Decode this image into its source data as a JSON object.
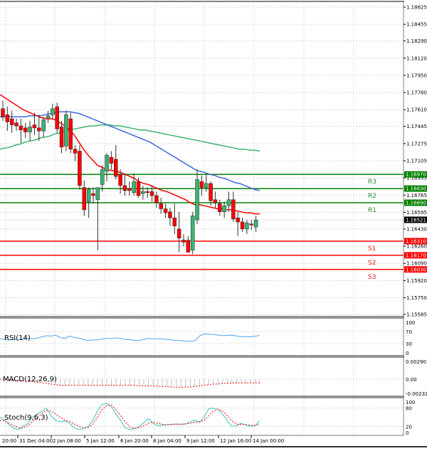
{
  "chart_data": {
    "type": "candlestick",
    "title": "",
    "symbol_context": "EUR/USD H4",
    "colors": {
      "bull": "#3cb371",
      "bear": "#ff0000",
      "wick": "#333333",
      "ma_fast": "#ff0000",
      "ma_mid": "#4169e1",
      "ma_slow": "#3cb371",
      "resistance": "#008000",
      "support": "#ff0000",
      "grid": "#d8d8d8",
      "rsi": "#4aa3ef",
      "macd_hist": "#c0c0c0",
      "macd_signal": "#ff0000",
      "stoch_main": "#40c0c0",
      "stoch_signal": "#ff0000",
      "current_price_bg": "#000000"
    },
    "price_axis": {
      "ticks": [
        "1.18625",
        "1.18455",
        "1.18290",
        "1.18120",
        "1.17950",
        "1.17780",
        "1.17610",
        "1.17445",
        "1.17275",
        "1.17105",
        "1.16935",
        "1.16765",
        "1.16595",
        "1.16430",
        "1.16260",
        "1.16090",
        "1.15920",
        "1.15750",
        "1.15585"
      ],
      "ylim": [
        1.15585,
        1.18625
      ]
    },
    "current_price": "1.16521",
    "levels": [
      {
        "name": "R3",
        "value": "1.16970",
        "type": "resistance"
      },
      {
        "name": "R2",
        "value": "1.16830",
        "type": "resistance"
      },
      {
        "name": "R1",
        "value": "1.16690",
        "type": "resistance"
      },
      {
        "name": "S1",
        "value": "1.16310",
        "type": "support"
      },
      {
        "name": "S2",
        "value": "1.16170",
        "type": "support"
      },
      {
        "name": "S3",
        "value": "1.16030",
        "type": "support"
      }
    ],
    "time_axis": {
      "labels": [
        "20:00",
        "31 Dec 04:00",
        "2 Jan 08:00",
        "5 Jan 12:00",
        "6 Jan 20:00",
        "8 Jan 04:00",
        "9 Jan 12:00",
        "12 Jan 16:00",
        "14 Jan 00:00"
      ]
    },
    "candles": [
      {
        "o": 1.1762,
        "h": 1.177,
        "l": 1.175,
        "c": 1.1754
      },
      {
        "o": 1.1756,
        "h": 1.1764,
        "l": 1.174,
        "c": 1.1749
      },
      {
        "o": 1.1752,
        "h": 1.176,
        "l": 1.1738,
        "c": 1.1746
      },
      {
        "o": 1.1748,
        "h": 1.1752,
        "l": 1.174,
        "c": 1.1745
      },
      {
        "o": 1.1745,
        "h": 1.1752,
        "l": 1.1728,
        "c": 1.1741
      },
      {
        "o": 1.1743,
        "h": 1.1748,
        "l": 1.1733,
        "c": 1.1739
      },
      {
        "o": 1.1739,
        "h": 1.175,
        "l": 1.173,
        "c": 1.1744
      },
      {
        "o": 1.1746,
        "h": 1.1758,
        "l": 1.1736,
        "c": 1.1743
      },
      {
        "o": 1.1743,
        "h": 1.1756,
        "l": 1.173,
        "c": 1.174
      },
      {
        "o": 1.174,
        "h": 1.1754,
        "l": 1.1734,
        "c": 1.1751
      },
      {
        "o": 1.1753,
        "h": 1.176,
        "l": 1.1748,
        "c": 1.1755
      },
      {
        "o": 1.1756,
        "h": 1.1767,
        "l": 1.1752,
        "c": 1.1762
      },
      {
        "o": 1.1764,
        "h": 1.1768,
        "l": 1.1738,
        "c": 1.1742
      },
      {
        "o": 1.1744,
        "h": 1.175,
        "l": 1.1718,
        "c": 1.1724
      },
      {
        "o": 1.1725,
        "h": 1.176,
        "l": 1.172,
        "c": 1.1756
      },
      {
        "o": 1.1752,
        "h": 1.1758,
        "l": 1.1718,
        "c": 1.1722
      },
      {
        "o": 1.1722,
        "h": 1.1726,
        "l": 1.171,
        "c": 1.1718
      },
      {
        "o": 1.172,
        "h": 1.1726,
        "l": 1.1682,
        "c": 1.1686
      },
      {
        "o": 1.1684,
        "h": 1.1691,
        "l": 1.1656,
        "c": 1.1662
      },
      {
        "o": 1.167,
        "h": 1.1684,
        "l": 1.1654,
        "c": 1.1682
      },
      {
        "o": 1.1678,
        "h": 1.1684,
        "l": 1.1668,
        "c": 1.1676
      },
      {
        "o": 1.1672,
        "h": 1.1684,
        "l": 1.1622,
        "c": 1.1684
      },
      {
        "o": 1.1687,
        "h": 1.1706,
        "l": 1.168,
        "c": 1.1702
      },
      {
        "o": 1.17,
        "h": 1.1718,
        "l": 1.169,
        "c": 1.1716
      },
      {
        "o": 1.1714,
        "h": 1.172,
        "l": 1.1702,
        "c": 1.1708
      },
      {
        "o": 1.1712,
        "h": 1.1726,
        "l": 1.1692,
        "c": 1.1695
      },
      {
        "o": 1.1697,
        "h": 1.1702,
        "l": 1.1678,
        "c": 1.1686
      },
      {
        "o": 1.1686,
        "h": 1.1698,
        "l": 1.1676,
        "c": 1.1681
      },
      {
        "o": 1.1683,
        "h": 1.169,
        "l": 1.1676,
        "c": 1.1681
      },
      {
        "o": 1.1679,
        "h": 1.1698,
        "l": 1.1676,
        "c": 1.169
      },
      {
        "o": 1.169,
        "h": 1.1694,
        "l": 1.1674,
        "c": 1.1676
      },
      {
        "o": 1.1678,
        "h": 1.1686,
        "l": 1.1672,
        "c": 1.168
      },
      {
        "o": 1.168,
        "h": 1.1684,
        "l": 1.1674,
        "c": 1.1679
      },
      {
        "o": 1.168,
        "h": 1.1686,
        "l": 1.167,
        "c": 1.1676
      },
      {
        "o": 1.1676,
        "h": 1.168,
        "l": 1.1664,
        "c": 1.1669
      },
      {
        "o": 1.1668,
        "h": 1.1674,
        "l": 1.1658,
        "c": 1.1663
      },
      {
        "o": 1.1663,
        "h": 1.1668,
        "l": 1.1654,
        "c": 1.1659
      },
      {
        "o": 1.166,
        "h": 1.1664,
        "l": 1.1646,
        "c": 1.1654
      },
      {
        "o": 1.1654,
        "h": 1.1668,
        "l": 1.1638,
        "c": 1.1646
      },
      {
        "o": 1.1643,
        "h": 1.166,
        "l": 1.162,
        "c": 1.1634
      },
      {
        "o": 1.1632,
        "h": 1.1638,
        "l": 1.1626,
        "c": 1.163
      },
      {
        "o": 1.1632,
        "h": 1.1636,
        "l": 1.162,
        "c": 1.162
      },
      {
        "o": 1.1622,
        "h": 1.166,
        "l": 1.1618,
        "c": 1.1656
      },
      {
        "o": 1.1652,
        "h": 1.1702,
        "l": 1.1648,
        "c": 1.1692
      },
      {
        "o": 1.169,
        "h": 1.1696,
        "l": 1.1676,
        "c": 1.1684
      },
      {
        "o": 1.1684,
        "h": 1.1698,
        "l": 1.168,
        "c": 1.1688
      },
      {
        "o": 1.1688,
        "h": 1.169,
        "l": 1.1666,
        "c": 1.1671
      },
      {
        "o": 1.1672,
        "h": 1.168,
        "l": 1.1664,
        "c": 1.1669
      },
      {
        "o": 1.1668,
        "h": 1.1672,
        "l": 1.1656,
        "c": 1.166
      },
      {
        "o": 1.166,
        "h": 1.167,
        "l": 1.1654,
        "c": 1.1666
      },
      {
        "o": 1.1666,
        "h": 1.168,
        "l": 1.166,
        "c": 1.1672
      },
      {
        "o": 1.1672,
        "h": 1.168,
        "l": 1.165,
        "c": 1.1653
      },
      {
        "o": 1.1654,
        "h": 1.166,
        "l": 1.1636,
        "c": 1.165
      },
      {
        "o": 1.165,
        "h": 1.1654,
        "l": 1.164,
        "c": 1.1643
      },
      {
        "o": 1.1643,
        "h": 1.1652,
        "l": 1.1638,
        "c": 1.1649
      },
      {
        "o": 1.1648,
        "h": 1.1652,
        "l": 1.1642,
        "c": 1.1647
      },
      {
        "o": 1.1645,
        "h": 1.1656,
        "l": 1.164,
        "c": 1.1652
      }
    ],
    "ma_fast": [
      1.1776,
      1.1773,
      1.177,
      1.1767,
      1.1764,
      1.1761,
      1.1759,
      1.1757,
      1.1755,
      1.1753,
      1.1752,
      1.1752,
      1.1751,
      1.1748,
      1.1745,
      1.1741,
      1.1736,
      1.1729,
      1.1722,
      1.1716,
      1.1711,
      1.1706,
      1.1704,
      1.1702,
      1.1701,
      1.17,
      1.1699,
      1.1697,
      1.1695,
      1.1693,
      1.169,
      1.1688,
      1.1687,
      1.1685,
      1.1683,
      1.1681,
      1.168,
      1.1678,
      1.1676,
      1.1674,
      1.1672,
      1.1669,
      1.1667,
      1.1667,
      1.1666,
      1.1665,
      1.1664,
      1.1663,
      1.1663,
      1.1662,
      1.1662,
      1.1661,
      1.166,
      1.1659,
      1.1659,
      1.1658,
      1.1658
    ],
    "ma_mid": [
      1.1754,
      1.1754,
      1.1754,
      1.1754,
      1.1754,
      1.1754,
      1.1755,
      1.1755,
      1.1755,
      1.1756,
      1.1757,
      1.1758,
      1.1759,
      1.1759,
      1.1759,
      1.1758,
      1.1757,
      1.1755,
      1.1753,
      1.1751,
      1.1749,
      1.1747,
      1.1745,
      1.1743,
      1.1741,
      1.1739,
      1.1737,
      1.1735,
      1.1733,
      1.1731,
      1.1729,
      1.1726,
      1.1723,
      1.172,
      1.1717,
      1.1714,
      1.1711,
      1.1708,
      1.1705,
      1.1702,
      1.17,
      1.1699,
      1.1697,
      1.1696,
      1.1694,
      1.1693,
      1.1691,
      1.1689,
      1.1688,
      1.1686,
      1.1684,
      1.1682,
      1.1681
    ],
    "ma_slow": [
      1.1722,
      1.1723,
      1.1724,
      1.1726,
      1.1727,
      1.1729,
      1.173,
      1.1731,
      1.1733,
      1.1734,
      1.1735,
      1.1737,
      1.1738,
      1.174,
      1.1741,
      1.1742,
      1.1743,
      1.1744,
      1.1745,
      1.1745,
      1.1746,
      1.1746,
      1.1746,
      1.1745,
      1.1745,
      1.1744,
      1.1743,
      1.1742,
      1.1741,
      1.1741,
      1.174,
      1.1739,
      1.1738,
      1.1737,
      1.1736,
      1.1735,
      1.1734,
      1.1733,
      1.1732,
      1.1731,
      1.173,
      1.1729,
      1.1728,
      1.1727,
      1.1726,
      1.1725,
      1.1724,
      1.1723,
      1.1722,
      1.1722,
      1.1721,
      1.1721,
      1.172
    ],
    "indicators": {
      "rsi": {
        "label": "RSI(14)",
        "ticks": [
          "100",
          "70",
          "30",
          "0"
        ],
        "values": [
          46,
          44,
          42,
          44,
          43,
          45,
          47,
          46,
          48,
          52,
          56,
          55,
          58,
          50,
          47,
          55,
          50,
          48,
          44,
          40,
          42,
          42,
          45,
          48,
          46,
          49,
          47,
          44,
          43,
          41,
          40,
          44,
          47,
          46,
          46,
          46,
          44,
          42,
          40,
          40,
          38,
          38,
          39,
          55,
          62,
          61,
          60,
          58,
          56,
          57,
          58,
          55,
          53,
          53,
          53,
          54,
          57
        ]
      },
      "macd": {
        "label": "MACD(12,26,9)",
        "ticks": [
          "0.002903",
          "0.00",
          "-0.002324"
        ],
        "hist": [
          0.0001,
          0.0,
          -0.0001,
          -0.0002,
          -0.0002,
          -0.0003,
          -0.0003,
          -0.0003,
          -0.0004,
          -0.0004,
          -0.0005,
          -0.0006,
          -0.0008,
          -0.0009,
          -0.001,
          -0.001,
          -0.001,
          -0.001,
          -0.001,
          -0.001,
          -0.001,
          -0.001,
          -0.001,
          -0.001,
          -0.001,
          -0.001,
          -0.001,
          -0.001,
          -0.001,
          -0.001,
          -0.001,
          -0.001,
          -0.001,
          -0.001,
          -0.0011,
          -0.0011,
          -0.0012,
          -0.0012,
          -0.0012,
          -0.0013,
          -0.0013,
          -0.0013,
          -0.0012,
          -0.001,
          -0.0009,
          -0.0008,
          -0.0008,
          -0.0008,
          -0.0007,
          -0.0007,
          -0.0007,
          -0.0007,
          -0.0007,
          -0.0007,
          -0.0006,
          -0.0006,
          -0.0006
        ],
        "signal": [
          0.0,
          0.0,
          -0.0001,
          -0.0002,
          -0.0002,
          -0.0003,
          -0.0004,
          -0.0004,
          -0.0005,
          -0.0006,
          -0.0007,
          -0.0008,
          -0.0009,
          -0.001,
          -0.001,
          -0.001,
          -0.001,
          -0.001,
          -0.001,
          -0.001,
          -0.001,
          -0.001,
          -0.001,
          -0.001,
          -0.001,
          -0.001,
          -0.001,
          -0.001,
          -0.001,
          -0.001,
          -0.0011,
          -0.0011,
          -0.0011,
          -0.0011,
          -0.0012,
          -0.0012,
          -0.0012,
          -0.0013,
          -0.0013,
          -0.0013,
          -0.0013,
          -0.0013,
          -0.0012,
          -0.0011,
          -0.001,
          -0.0009,
          -0.0008,
          -0.0008,
          -0.0007,
          -0.0007,
          -0.0006,
          -0.0006,
          -0.0006,
          -0.0006,
          -0.0006,
          -0.0006,
          -0.0006
        ]
      },
      "stoch": {
        "label": "Stoch(9,6,3)",
        "ticks": [
          "100",
          "80",
          "20",
          "0"
        ],
        "main": [
          50,
          40,
          25,
          14,
          10,
          20,
          30,
          50,
          60,
          70,
          80,
          55,
          40,
          35,
          38,
          30,
          15,
          10,
          12,
          20,
          40,
          70,
          92,
          95,
          85,
          60,
          40,
          15,
          10,
          12,
          20,
          32,
          45,
          30,
          22,
          24,
          25,
          27,
          28,
          27,
          28,
          35,
          40,
          33,
          50,
          78,
          80,
          75,
          60,
          38,
          20,
          22,
          30,
          25,
          20,
          22,
          38
        ],
        "signal": [
          40,
          38,
          30,
          22,
          16,
          15,
          22,
          35,
          48,
          62,
          72,
          70,
          60,
          50,
          40,
          36,
          28,
          20,
          15,
          16,
          28,
          50,
          75,
          88,
          90,
          75,
          55,
          35,
          18,
          14,
          15,
          22,
          30,
          34,
          30,
          27,
          25,
          26,
          27,
          27,
          28,
          30,
          34,
          35,
          40,
          55,
          70,
          76,
          70,
          55,
          38,
          28,
          26,
          26,
          24,
          23,
          28
        ]
      }
    }
  },
  "ui": {
    "tags": {
      "r3": "1.16970",
      "r2": "1.16830",
      "r1": "1.16690",
      "current": "1.16521",
      "s1": "1.16310",
      "s2": "1.16170",
      "s3": "1.16030"
    }
  }
}
